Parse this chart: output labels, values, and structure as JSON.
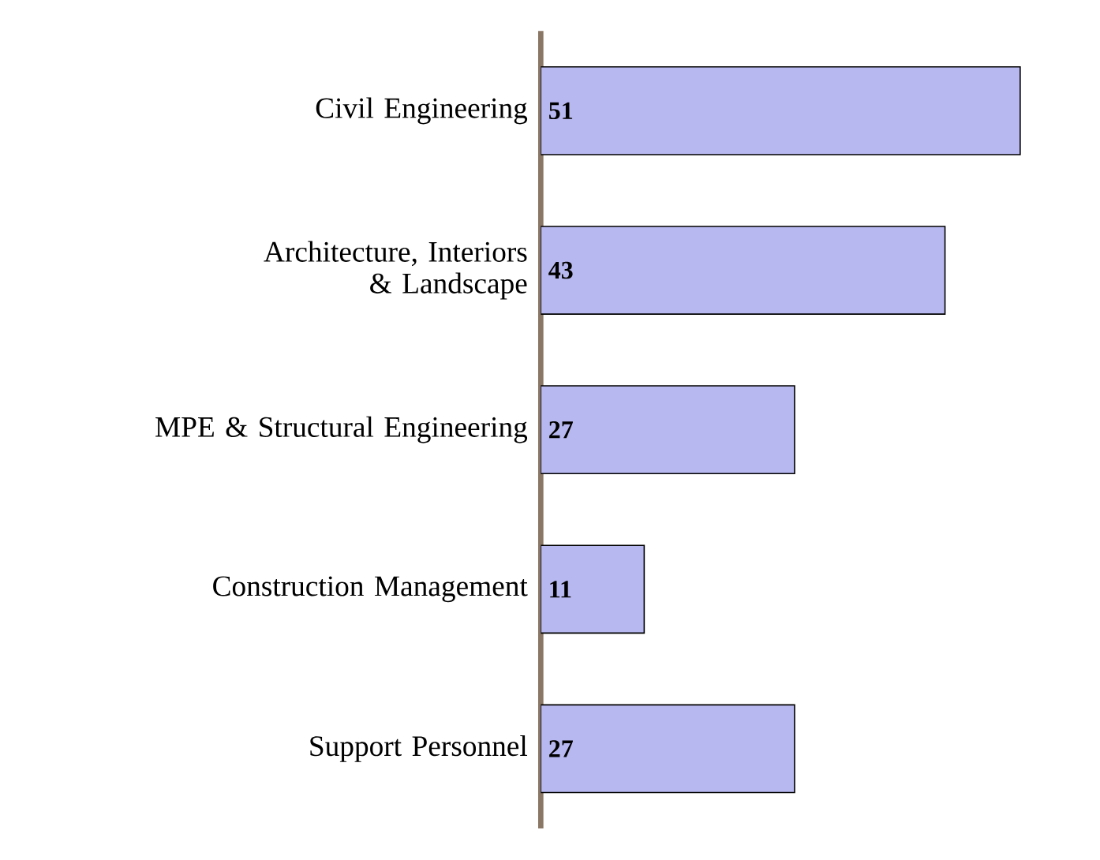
{
  "chart_data": {
    "type": "bar",
    "orientation": "horizontal",
    "categories": [
      "Civil Engineering",
      "Architecture, Interiors & Landscape",
      "MPE & Structural Engineering",
      "Construction Management",
      "Support Personnel"
    ],
    "values": [
      51,
      43,
      27,
      11,
      27
    ],
    "color": "#b8b8f0",
    "data_labels": true
  }
}
